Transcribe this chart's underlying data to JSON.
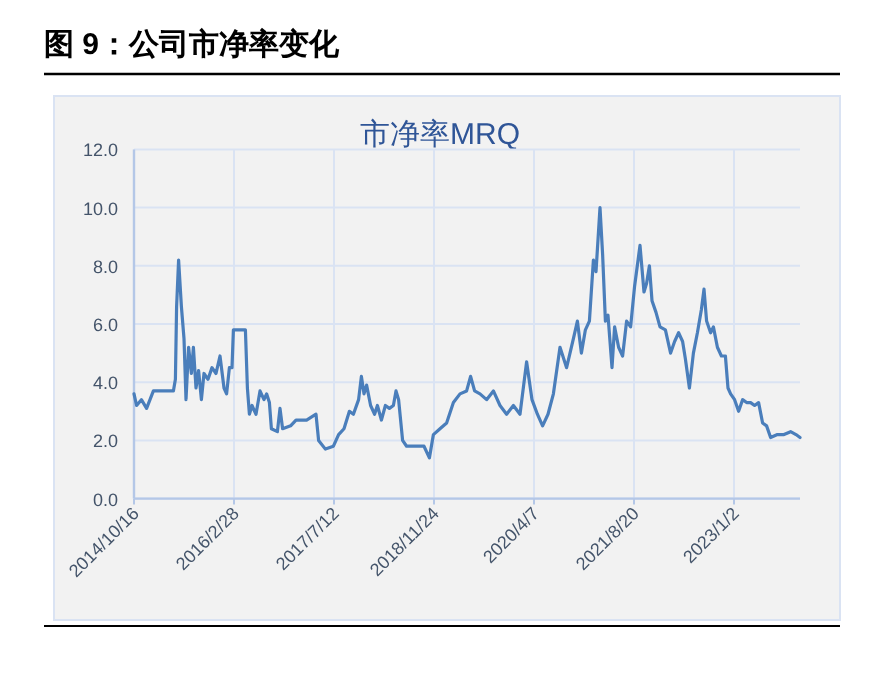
{
  "chart_data": {
    "type": "line",
    "title": "图 9：公司市净率变化",
    "subtitle": "市净率MRQ",
    "grid": true,
    "marker": "none",
    "line_style": "solid",
    "xlim": [
      "2014-10-16",
      "2023-11-28"
    ],
    "ylim": [
      0,
      12
    ],
    "yticks": [
      {
        "value": 0,
        "label": "0.0"
      },
      {
        "value": 2,
        "label": "2.0"
      },
      {
        "value": 4,
        "label": "4.0"
      },
      {
        "value": 6,
        "label": "6.0"
      },
      {
        "value": 8,
        "label": "8.0"
      },
      {
        "value": 10,
        "label": "10.0"
      },
      {
        "value": 12,
        "label": "12.0"
      }
    ],
    "xticks": [
      {
        "value": "2014-10-16",
        "label": "2014/10/16"
      },
      {
        "value": "2016-02-28",
        "label": "2016/2/28"
      },
      {
        "value": "2017-07-12",
        "label": "2017/7/12"
      },
      {
        "value": "2018-11-24",
        "label": "2018/11/24"
      },
      {
        "value": "2020-04-07",
        "label": "2020/4/7"
      },
      {
        "value": "2021-08-20",
        "label": "2021/8/20"
      },
      {
        "value": "2023-01-02",
        "label": "2023/1/2"
      }
    ],
    "series": [
      {
        "color": "#4a7ebb",
        "x": [
          "2014-10-16",
          "2014-10-29",
          "2014-11-22",
          "2014-12-18",
          "2015-01-21",
          "2015-02-23",
          "2015-05-01",
          "2015-05-11",
          "2015-05-17",
          "2015-05-27",
          "2015-06-10",
          "2015-06-23",
          "2015-07-03",
          "2015-07-16",
          "2015-07-30",
          "2015-08-09",
          "2015-08-22",
          "2015-09-04",
          "2015-09-18",
          "2015-10-01",
          "2015-10-21",
          "2015-11-10",
          "2015-11-30",
          "2015-12-20",
          "2016-01-09",
          "2016-01-22",
          "2016-02-05",
          "2016-02-18",
          "2016-02-25",
          "2016-04-25",
          "2016-05-05",
          "2016-05-15",
          "2016-05-28",
          "2016-06-17",
          "2016-07-07",
          "2016-07-27",
          "2016-08-09",
          "2016-08-23",
          "2016-09-02",
          "2016-10-02",
          "2016-10-15",
          "2016-10-28",
          "2016-12-07",
          "2017-01-03",
          "2017-02-25",
          "2017-04-13",
          "2017-04-26",
          "2017-05-30",
          "2017-07-09",
          "2017-08-04",
          "2017-08-31",
          "2017-09-27",
          "2017-10-17",
          "2017-11-12",
          "2017-11-26",
          "2017-12-09",
          "2017-12-22",
          "2018-01-11",
          "2018-01-31",
          "2018-02-14",
          "2018-03-06",
          "2018-03-26",
          "2018-04-15",
          "2018-05-05",
          "2018-05-18",
          "2018-05-31",
          "2018-06-20",
          "2018-07-10",
          "2018-08-06",
          "2018-09-08",
          "2018-10-05",
          "2018-11-01",
          "2018-11-21",
          "2018-12-24",
          "2019-01-26",
          "2019-03-01",
          "2019-04-03",
          "2019-05-06",
          "2019-05-26",
          "2019-06-15",
          "2019-07-12",
          "2019-08-14",
          "2019-09-17",
          "2019-10-20",
          "2019-11-22",
          "2019-12-26",
          "2020-01-28",
          "2020-03-01",
          "2020-03-28",
          "2020-04-24",
          "2020-05-20",
          "2020-06-16",
          "2020-07-13",
          "2020-08-15",
          "2020-09-17",
          "2020-10-21",
          "2020-11-10",
          "2020-11-30",
          "2020-12-20",
          "2021-01-09",
          "2021-01-29",
          "2021-02-11",
          "2021-03-03",
          "2021-03-16",
          "2021-03-30",
          "2021-04-12",
          "2021-05-02",
          "2021-05-15",
          "2021-06-04",
          "2021-06-24",
          "2021-07-14",
          "2021-08-03",
          "2021-08-23",
          "2021-09-19",
          "2021-10-09",
          "2021-10-22",
          "2021-11-05",
          "2021-11-18",
          "2021-12-08",
          "2021-12-28",
          "2022-01-24",
          "2022-02-19",
          "2022-03-11",
          "2022-03-31",
          "2022-04-20",
          "2022-05-04",
          "2022-05-24",
          "2022-06-13",
          "2022-07-03",
          "2022-07-23",
          "2022-08-05",
          "2022-08-18",
          "2022-09-07",
          "2022-09-21",
          "2022-10-11",
          "2022-10-31",
          "2022-11-20",
          "2022-12-03",
          "2022-12-16",
          "2023-01-05",
          "2023-01-25",
          "2023-02-14",
          "2023-03-06",
          "2023-03-26",
          "2023-04-15",
          "2023-05-05",
          "2023-05-25",
          "2023-06-14",
          "2023-07-04",
          "2023-08-07",
          "2023-09-09",
          "2023-10-12",
          "2023-11-08",
          "2023-11-28"
        ],
        "values": [
          3.6,
          3.2,
          3.4,
          3.1,
          3.7,
          3.7,
          3.7,
          4.1,
          6.6,
          8.2,
          6.6,
          5.5,
          3.4,
          5.2,
          4.3,
          5.2,
          3.8,
          4.4,
          3.4,
          4.3,
          4.1,
          4.5,
          4.3,
          4.9,
          3.8,
          3.6,
          4.5,
          4.5,
          5.8,
          5.8,
          3.8,
          2.9,
          3.2,
          2.9,
          3.7,
          3.4,
          3.6,
          3.3,
          2.4,
          2.3,
          3.1,
          2.4,
          2.5,
          2.7,
          2.7,
          2.9,
          2.0,
          1.7,
          1.8,
          2.2,
          2.4,
          3.0,
          2.9,
          3.4,
          4.2,
          3.6,
          3.9,
          3.2,
          2.9,
          3.2,
          2.7,
          3.2,
          3.1,
          3.2,
          3.7,
          3.4,
          2.0,
          1.8,
          1.8,
          1.8,
          1.8,
          1.4,
          2.2,
          2.4,
          2.6,
          3.3,
          3.6,
          3.7,
          4.2,
          3.7,
          3.6,
          3.4,
          3.7,
          3.2,
          2.9,
          3.2,
          2.9,
          4.7,
          3.4,
          2.9,
          2.5,
          2.9,
          3.6,
          5.2,
          4.5,
          5.5,
          6.1,
          5.0,
          5.8,
          6.1,
          8.2,
          7.8,
          10.0,
          8.4,
          6.1,
          6.3,
          4.5,
          5.9,
          5.2,
          4.9,
          6.1,
          5.9,
          7.3,
          8.7,
          7.1,
          7.4,
          8.0,
          6.8,
          6.4,
          5.9,
          5.8,
          5.0,
          5.4,
          5.7,
          5.4,
          4.8,
          3.8,
          5.0,
          5.7,
          6.5,
          7.2,
          6.1,
          5.7,
          5.9,
          5.2,
          4.9,
          4.9,
          3.8,
          3.6,
          3.4,
          3.0,
          3.4,
          3.3,
          3.3,
          3.2,
          3.3,
          2.6,
          2.5,
          2.1,
          2.2,
          2.2,
          2.3,
          2.2,
          2.1
        ]
      }
    ]
  }
}
